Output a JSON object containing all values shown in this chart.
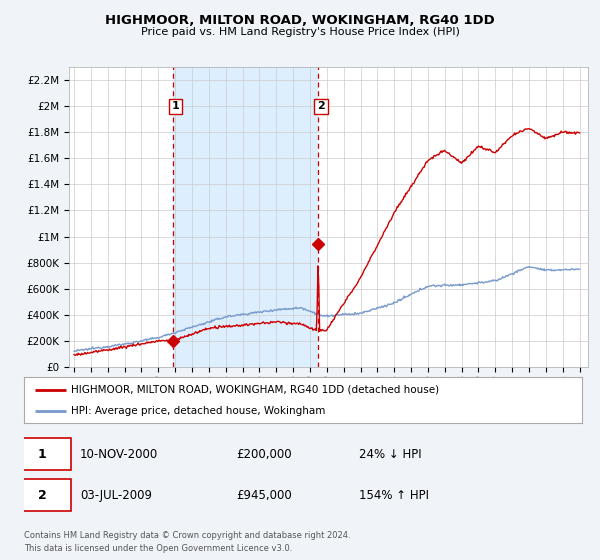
{
  "title": "HIGHMOOR, MILTON ROAD, WOKINGHAM, RG40 1DD",
  "subtitle": "Price paid vs. HM Land Registry's House Price Index (HPI)",
  "background_color": "#f0f4f8",
  "plot_bg_color": "#ffffff",
  "red_line_color": "#cc0000",
  "blue_line_color": "#7799cc",
  "highlight_bg_color": "#ddeeff",
  "dashed_line_color": "#cc0000",
  "sale1_year": 2000.87,
  "sale1_price": 200000,
  "sale1_date": "10-NOV-2000",
  "sale1_pct": "24% ↓ HPI",
  "sale2_year": 2009.5,
  "sale2_price": 945000,
  "sale2_date": "03-JUL-2009",
  "sale2_pct": "154% ↑ HPI",
  "ylim_max": 2300000,
  "xlim_min": 1994.7,
  "xlim_max": 2025.5,
  "legend_line1": "HIGHMOOR, MILTON ROAD, WOKINGHAM, RG40 1DD (detached house)",
  "legend_line2": "HPI: Average price, detached house, Wokingham",
  "footer": "Contains HM Land Registry data © Crown copyright and database right 2024.\nThis data is licensed under the Open Government Licence v3.0.",
  "yticks": [
    0,
    200000,
    400000,
    600000,
    800000,
    1000000,
    1200000,
    1400000,
    1600000,
    1800000,
    2000000,
    2200000
  ]
}
